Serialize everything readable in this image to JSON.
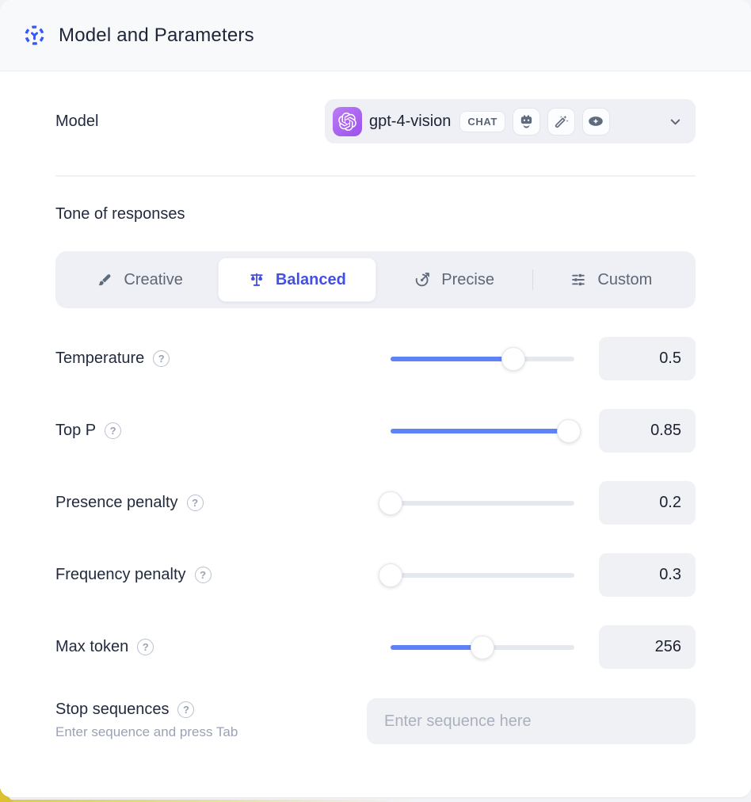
{
  "header": {
    "title": "Model and Parameters"
  },
  "model": {
    "label": "Model",
    "selected": {
      "provider": "OpenAI",
      "name": "gpt-4-vision",
      "type_badge": "CHAT",
      "capability_icons": [
        "robot-icon",
        "magic-wand-icon",
        "vision-eye-icon"
      ]
    }
  },
  "tone": {
    "label": "Tone of responses",
    "options": [
      {
        "label": "Creative",
        "icon": "paintbrush-icon",
        "selected": false
      },
      {
        "label": "Balanced",
        "icon": "balance-scale-icon",
        "selected": true
      },
      {
        "label": "Precise",
        "icon": "target-arrow-icon",
        "selected": false
      },
      {
        "label": "Custom",
        "icon": "sliders-icon",
        "selected": false
      }
    ]
  },
  "parameters": [
    {
      "label": "Temperature",
      "value": "0.5",
      "fill_percent": 67
    },
    {
      "label": "Top P",
      "value": "0.85",
      "fill_percent": 97
    },
    {
      "label": "Presence penalty",
      "value": "0.2",
      "fill_percent": 0
    },
    {
      "label": "Frequency penalty",
      "value": "0.3",
      "fill_percent": 0
    },
    {
      "label": "Max token",
      "value": "256",
      "fill_percent": 50
    }
  ],
  "stop_sequences": {
    "label": "Stop sequences",
    "hint": "Enter sequence and press Tab",
    "placeholder": "Enter sequence here"
  },
  "help_glyph": "?",
  "colors": {
    "slider_blue": "#5f83f7",
    "selected_indigo": "#4350e6",
    "provider_purple": "#9b51ec",
    "header_bg": "#f8f9fb",
    "control_bg": "#eef0f5",
    "accent_yellow": "#dcc231"
  }
}
